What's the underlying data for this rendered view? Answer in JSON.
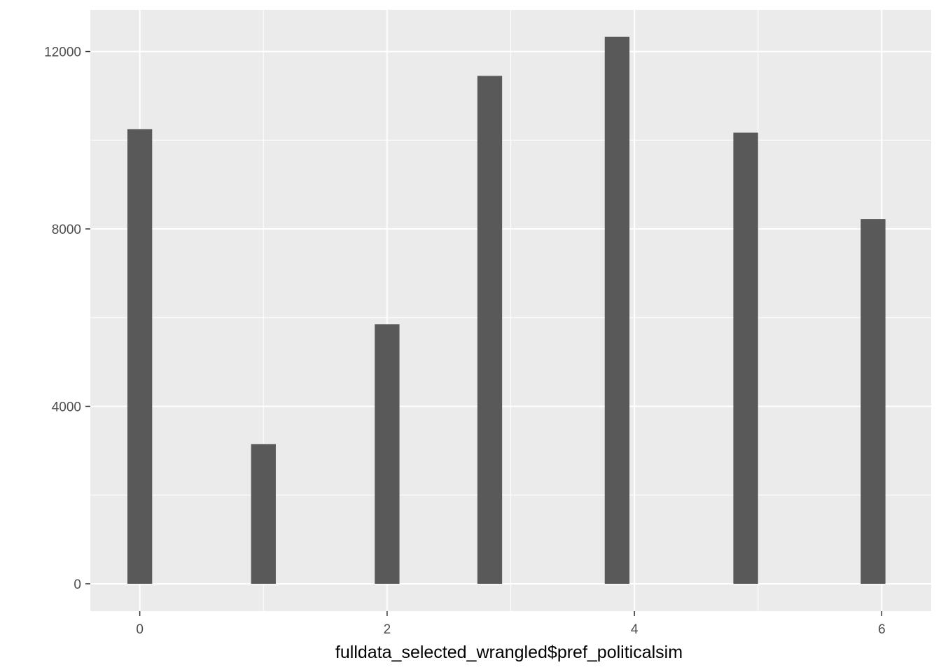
{
  "chart_data": {
    "type": "bar",
    "x": [
      0,
      1,
      2,
      2.83,
      3.86,
      4.9,
      5.93
    ],
    "values": [
      10250,
      3150,
      5850,
      11450,
      12330,
      10170,
      8220
    ],
    "bar_width": 0.2,
    "xlabel": "fulldata_selected_wrangled$pref_politicalsim",
    "ylabel": "",
    "xlim": [
      -0.4,
      6.4
    ],
    "ylim": [
      -616,
      12940
    ],
    "x_ticks": [
      0,
      2,
      4,
      6
    ],
    "x_minor_ticks": [
      1,
      3,
      5
    ],
    "y_ticks": [
      0,
      4000,
      8000,
      12000
    ],
    "y_minor_ticks": [
      2000,
      6000,
      10000
    ],
    "grid": true,
    "colors": {
      "panel_background": "#ebebeb",
      "grid": "#ffffff",
      "bar_fill": "#595959",
      "tick_mark": "#333333",
      "tick_text": "#4d4d4d",
      "axis_title": "#000000"
    }
  }
}
